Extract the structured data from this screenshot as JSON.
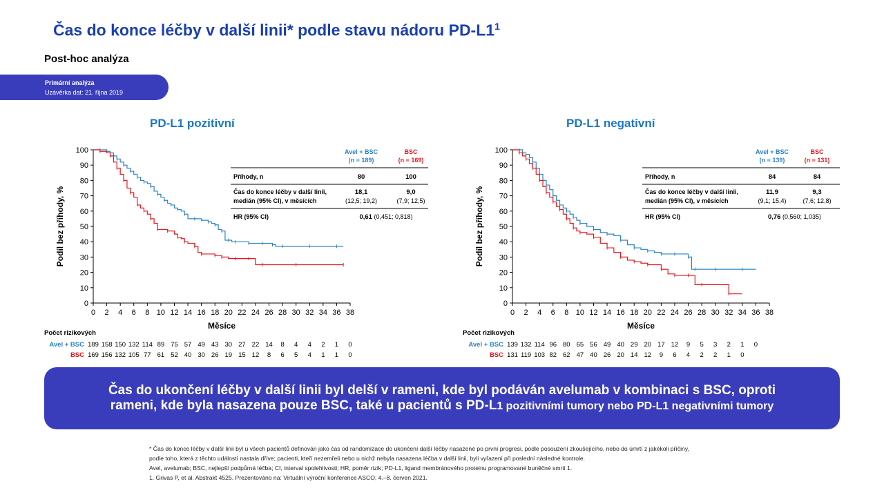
{
  "header": {
    "title": "Čas do konce léčby v další linii* podle stavu nádoru PD-L1",
    "title_sup": "1",
    "subtitle": "Post-hoc analýza"
  },
  "badge": {
    "line1": "Primární analýza",
    "line2": "Uzávěrka dat: 21. října 2019"
  },
  "colors": {
    "avel": "#2a83c4",
    "bsc": "#e8151b",
    "accent": "#3a3dbb",
    "title": "#1a3fb0"
  },
  "panels": [
    {
      "title": "PD-L1 pozitivní",
      "ylabel": "Podíl bez příhody, %",
      "xlabel": "Měsíce",
      "table": {
        "col1": "Avel + BSC",
        "col1n": "(n = 189)",
        "col2": "BSC",
        "col2n": "(n = 169)",
        "r1label": "Příhody, n",
        "r1a": "80",
        "r1b": "100",
        "r2label1": "Čas do konce léčby v další linii,",
        "r2label2": "medián (95% CI), v měsících",
        "r2a1": "18,1",
        "r2a2": "(12,5; 19,2)",
        "r2b1": "9,0",
        "r2b2": "(7,9; 12,5)",
        "r3label": "HR (95% CI)",
        "r3bold": "0,61",
        "r3rest": " (0,451; 0,818)"
      },
      "risk_title": "Počet rizikových",
      "risk_avel_label": "Avel + BSC",
      "risk_bsc_label": "BSC",
      "risk_avel": [
        "189",
        "158",
        "150",
        "132",
        "114",
        "89",
        "75",
        "57",
        "49",
        "43",
        "30",
        "27",
        "22",
        "14",
        "8",
        "4",
        "4",
        "2",
        "1",
        "0"
      ],
      "risk_bsc": [
        "169",
        "156",
        "132",
        "105",
        "77",
        "61",
        "52",
        "40",
        "30",
        "26",
        "19",
        "15",
        "12",
        "8",
        "6",
        "5",
        "4",
        "1",
        "1",
        "0"
      ]
    },
    {
      "title": "PD-L1 negativní",
      "ylabel": "Podíl bez příhody, %",
      "xlabel": "Měsíce",
      "table": {
        "col1": "Avel + BSC",
        "col1n": "(n = 139)",
        "col2": "BSC",
        "col2n": "(n = 131)",
        "r1label": "Příhody, n",
        "r1a": "84",
        "r1b": "84",
        "r2label1": "Čas do konce léčby v další linii,",
        "r2label2": "medián (95% CI), v měsících",
        "r2a1": "11,9",
        "r2a2": "(9,1; 15,4)",
        "r2b1": "9,3",
        "r2b2": "(7,6; 12,8)",
        "r3label": "HR (95% CI)",
        "r3bold": "0,76",
        "r3rest": " (0,560; 1,035)"
      },
      "risk_title": "Počet rizikových",
      "risk_avel_label": "Avel + BSC",
      "risk_bsc_label": "BSC",
      "risk_avel": [
        "139",
        "132",
        "114",
        "96",
        "80",
        "65",
        "56",
        "49",
        "40",
        "29",
        "20",
        "17",
        "12",
        "9",
        "5",
        "3",
        "2",
        "1",
        "0"
      ],
      "risk_bsc": [
        "131",
        "119",
        "103",
        "82",
        "62",
        "47",
        "40",
        "26",
        "20",
        "14",
        "12",
        "9",
        "6",
        "4",
        "2",
        "2",
        "1",
        "0"
      ]
    }
  ],
  "chart_data": [
    {
      "type": "line",
      "title": "PD-L1 pozitivní",
      "xlabel": "Měsíce",
      "ylabel": "Podíl bez příhody, %",
      "xlim": [
        0,
        38
      ],
      "ylim": [
        0,
        100
      ],
      "xticks": [
        0,
        2,
        4,
        6,
        8,
        10,
        12,
        14,
        16,
        18,
        20,
        22,
        24,
        26,
        28,
        30,
        32,
        34,
        36,
        38
      ],
      "yticks": [
        0,
        10,
        20,
        30,
        40,
        50,
        60,
        70,
        80,
        90,
        100
      ],
      "series": [
        {
          "name": "Avel + BSC",
          "color": "#2a83c4",
          "x": [
            0,
            1,
            2,
            2.5,
            3,
            3.5,
            4,
            4.5,
            5,
            5.5,
            6,
            6.5,
            7,
            7.5,
            8,
            8.5,
            9,
            9.5,
            10,
            10.5,
            11,
            11.5,
            12,
            12.5,
            13,
            13.5,
            14,
            15,
            16,
            17,
            17.5,
            18,
            18.5,
            19,
            19.5,
            20,
            20.5,
            21,
            22,
            23,
            24,
            25,
            26,
            26.5,
            27,
            28,
            30,
            32,
            34,
            36,
            37
          ],
          "y": [
            100,
            100,
            99,
            98,
            96,
            94,
            92,
            90,
            88,
            86,
            84,
            82,
            80,
            79,
            78,
            76,
            73,
            71,
            69,
            67,
            65,
            64,
            62,
            61,
            60,
            58,
            55,
            55,
            54,
            53,
            52,
            51,
            48,
            47,
            41,
            41,
            40,
            40,
            40,
            39,
            39,
            39,
            39,
            38,
            37,
            37,
            37,
            37,
            37,
            37,
            37
          ]
        },
        {
          "name": "BSC",
          "color": "#e8151b",
          "x": [
            0,
            1,
            2,
            2.5,
            3,
            3.5,
            4,
            4.5,
            5,
            5.5,
            6,
            6.5,
            7,
            7.5,
            8,
            8.5,
            9,
            9.5,
            10,
            11,
            12,
            12.5,
            13,
            13.5,
            14,
            15,
            15.5,
            16,
            17,
            18,
            18.5,
            19,
            20,
            21,
            22,
            23,
            24,
            25,
            26,
            30,
            34,
            37
          ],
          "y": [
            100,
            99,
            98,
            96,
            92,
            88,
            84,
            80,
            75,
            72,
            69,
            64,
            62,
            60,
            58,
            55,
            52,
            48,
            48,
            47,
            45,
            43,
            42,
            40,
            39,
            37,
            33,
            32,
            32,
            31,
            31,
            30,
            29,
            29,
            29,
            29,
            25,
            25,
            25,
            25,
            25,
            25
          ]
        }
      ]
    },
    {
      "type": "line",
      "title": "PD-L1 negativní",
      "xlabel": "Měsíce",
      "ylabel": "Podíl bez příhody, %",
      "xlim": [
        0,
        38
      ],
      "ylim": [
        0,
        100
      ],
      "xticks": [
        0,
        2,
        4,
        6,
        8,
        10,
        12,
        14,
        16,
        18,
        20,
        22,
        24,
        26,
        28,
        30,
        32,
        34,
        36,
        38
      ],
      "yticks": [
        0,
        10,
        20,
        30,
        40,
        50,
        60,
        70,
        80,
        90,
        100
      ],
      "series": [
        {
          "name": "Avel + BSC",
          "color": "#2a83c4",
          "x": [
            0,
            1,
            1.5,
            2,
            2.5,
            3,
            3.5,
            4,
            4.5,
            5,
            5.5,
            6,
            6.5,
            7,
            7.5,
            8,
            8.5,
            9,
            9.5,
            10,
            11,
            12,
            13,
            14,
            15,
            16,
            17,
            18,
            19,
            20,
            21,
            22,
            23,
            24,
            25,
            26,
            26.5,
            27,
            28,
            30,
            32,
            34,
            36
          ],
          "y": [
            100,
            100,
            98,
            97,
            95,
            92,
            88,
            84,
            80,
            77,
            74,
            70,
            67,
            64,
            62,
            60,
            58,
            56,
            54,
            52,
            50,
            48,
            46,
            45,
            44,
            41,
            38,
            36,
            35,
            34,
            33,
            32,
            32,
            32,
            32,
            30,
            22,
            22,
            22,
            22,
            22,
            22,
            22
          ]
        },
        {
          "name": "BSC",
          "color": "#e8151b",
          "x": [
            0,
            1,
            1.5,
            2,
            2.5,
            3,
            3.5,
            4,
            4.5,
            5,
            5.5,
            6,
            6.5,
            7,
            7.5,
            8,
            8.5,
            9,
            9.5,
            10,
            11,
            12,
            13,
            14,
            15,
            16,
            17,
            18,
            19,
            20,
            21,
            22,
            23,
            24,
            25,
            26,
            27,
            28,
            30,
            32,
            34
          ],
          "y": [
            100,
            98,
            96,
            94,
            91,
            88,
            84,
            80,
            76,
            72,
            69,
            66,
            63,
            61,
            58,
            55,
            52,
            49,
            47,
            46,
            45,
            43,
            39,
            36,
            33,
            30,
            28,
            27,
            26,
            25,
            25,
            22,
            19,
            18,
            18,
            18,
            12,
            12,
            12,
            6,
            6
          ]
        }
      ]
    }
  ],
  "callout": {
    "line1": "Čas do ukončení léčby v další linii byl delší v rameni, kde byl podáván avelumab v kombinaci s BSC, oproti",
    "line2a": "rameni, kde byla nasazena pouze BSC, také u pacientů s PD-L",
    "line2b": "1 pozitivními tumory nebo PD-L1 negativními tumory"
  },
  "footnotes": [
    "* Čas do konce léčby v další linii byl u všech pacientů definován jako čas od randomizace do ukončení další léčby nasazené po první progresi, podle posouzení zkoušejícího, nebo do úmrtí z jakékoli příčiny,",
    "podle toho, která z těchto událostí nastala dříve; pacienti, kteří nezemřeli nebo u nichž nebyla nasazena léčba v další linii, byli vyřazeni při poslední následné kontrole.",
    "Avel, avelumab; BSC, nejlepší podpůrná léčba; CI, interval spolehlivosti; HR, poměr rizik; PD-L1, ligand membránového proteinu programované buněčné smrti 1.",
    "1. Grivas P, et al. Abstrakt 4525. Prezentováno na: Virtuální výroční konference ASCO; 4.–8. červen 2021."
  ]
}
